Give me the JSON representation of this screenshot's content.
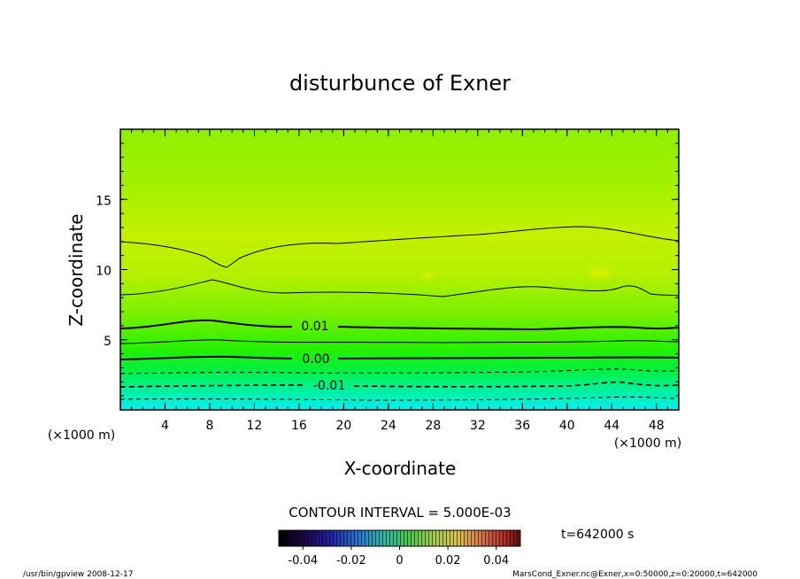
{
  "chart_data": {
    "type": "heatmap",
    "title": "disturbunce of Exner",
    "xlabel": "X-coordinate",
    "ylabel": "Z-coordinate",
    "x_unit_left": "(×1000 m)",
    "x_unit_right": "(×1000 m)",
    "xlim": [
      0,
      50
    ],
    "ylim": [
      0,
      20
    ],
    "x_ticks": [
      4,
      8,
      12,
      16,
      20,
      24,
      28,
      32,
      36,
      40,
      44,
      48
    ],
    "y_ticks": [
      5,
      10,
      15
    ],
    "contour_labels": [
      {
        "text": "0.01",
        "value": 0.01
      },
      {
        "text": "0.00",
        "value": 0.0
      },
      {
        "text": "-0.01",
        "value": -0.01
      }
    ],
    "contour_interval_label": "CONTOUR INTERVAL = 5.000E-03",
    "time_label": "t=642000 s",
    "colorbar": {
      "range": [
        -0.05,
        0.05
      ],
      "tick_labels": [
        "-0.04",
        "-0.02",
        "0",
        "0.02",
        "0.04"
      ],
      "tick_values": [
        -0.04,
        -0.02,
        0,
        0.02,
        0.04
      ]
    },
    "colors": {
      "top": "#96f000",
      "mid": "#c8f000",
      "low": "#00f078",
      "bottom": "#00f0f0"
    }
  },
  "footer": {
    "left": "/usr/bin/gpview  2008-12-17",
    "right": "MarsCond_Exner.nc@Exner,x=0:50000,z=0:20000,t=642000"
  }
}
